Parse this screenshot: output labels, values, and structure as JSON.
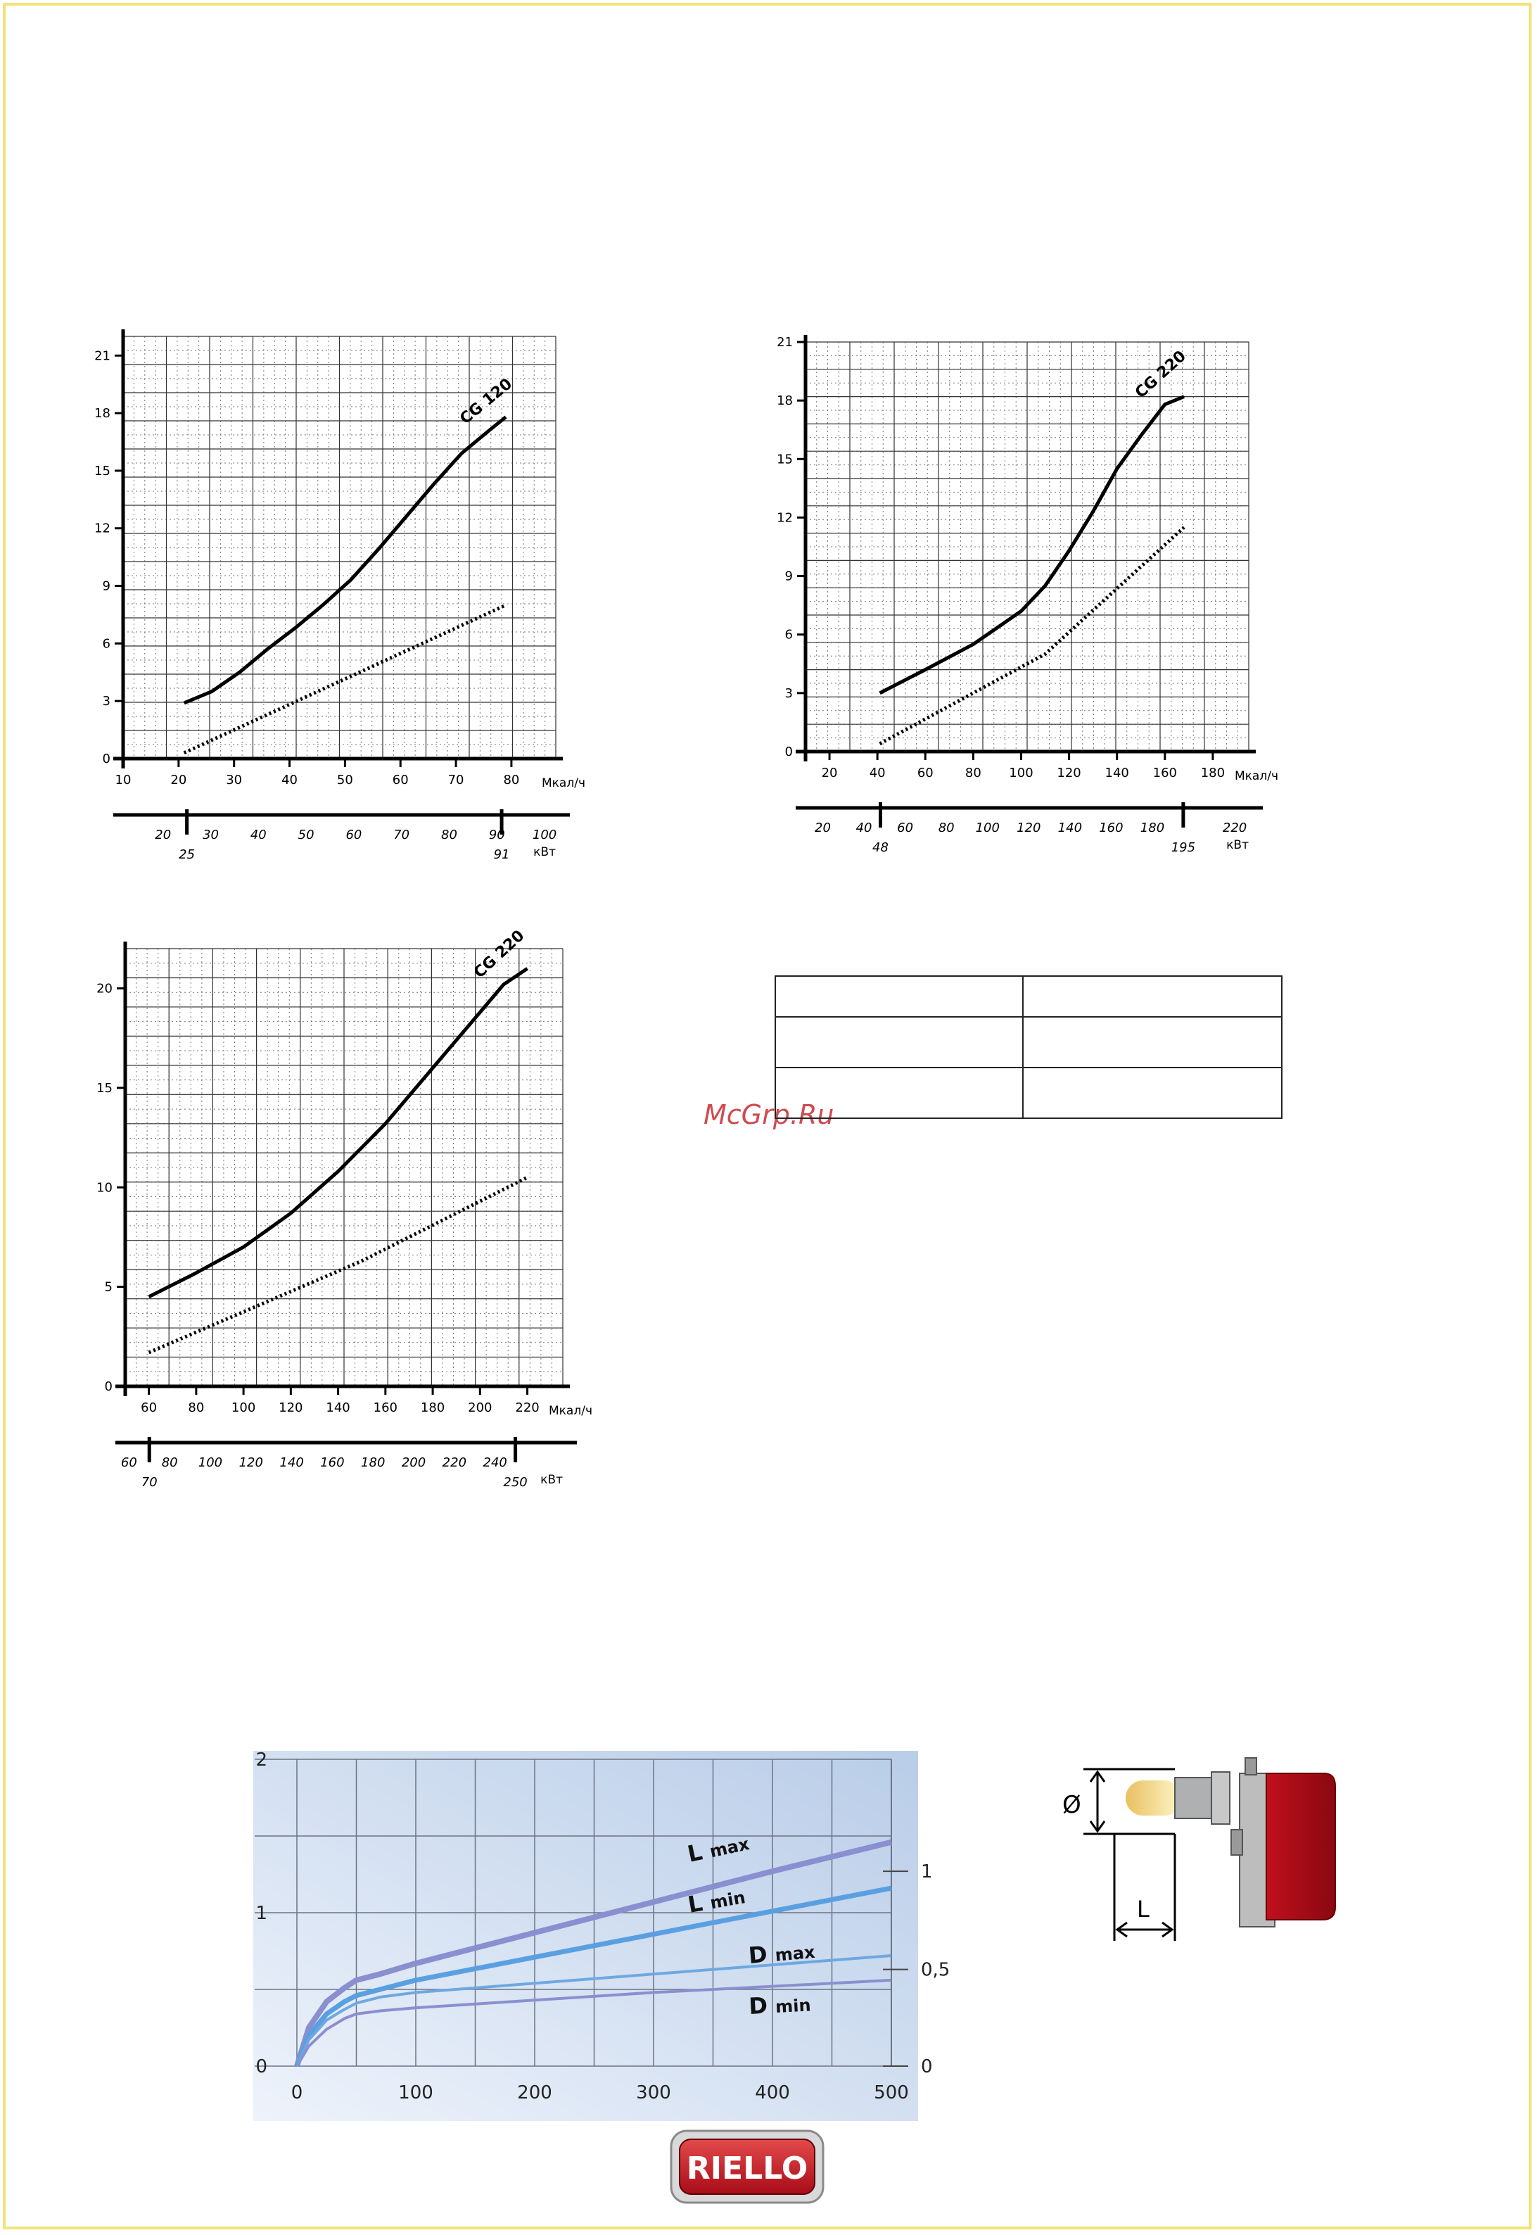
{
  "watermark": "McGrp.Ru",
  "logo_text": "RIELLO",
  "burner_diagram": {
    "diameter_label": "Ø",
    "length_label": "L"
  },
  "chart_data": [
    {
      "type": "line",
      "id": "chart1",
      "ylim": [
        0,
        22
      ],
      "yticks": [
        0,
        3,
        6,
        9,
        12,
        15,
        18,
        21
      ],
      "xlim": [
        10,
        88
      ],
      "xticks": [
        10,
        20,
        30,
        40,
        50,
        60,
        70,
        80
      ],
      "xunit": "Мкал/ч",
      "secondary_axis": {
        "unit": "кВт",
        "ticks": [
          20,
          30,
          40,
          50,
          60,
          70,
          80,
          90,
          100
        ],
        "kw_min": 25,
        "kw_max": 91,
        "range_labels": [
          "25",
          "91"
        ]
      },
      "series": [
        {
          "name": "CG 120",
          "style": "solid",
          "x": [
            21,
            26,
            31,
            36,
            41,
            46,
            51,
            56,
            61,
            66,
            71,
            76,
            79
          ],
          "y": [
            2.9,
            3.5,
            4.5,
            5.7,
            6.8,
            8.0,
            9.3,
            10.9,
            12.6,
            14.3,
            15.9,
            17.1,
            17.8
          ]
        },
        {
          "style": "dotted",
          "x": [
            21,
            79
          ],
          "y": [
            0.3,
            8.0
          ]
        }
      ]
    },
    {
      "type": "line",
      "id": "chart2",
      "ylim": [
        0,
        21
      ],
      "yticks": [
        0,
        3,
        6,
        9,
        12,
        15,
        18,
        21
      ],
      "xlim": [
        10,
        195
      ],
      "xticks": [
        20,
        40,
        60,
        80,
        100,
        120,
        140,
        160,
        180
      ],
      "xunit": "Мкал/ч",
      "secondary_axis": {
        "unit": "кВт",
        "ticks": [
          20,
          40,
          60,
          80,
          100,
          120,
          140,
          160,
          180,
          220
        ],
        "kw_min": 48,
        "kw_max": 195,
        "range_labels": [
          "48",
          "195"
        ]
      },
      "series": [
        {
          "name": "CG 220",
          "style": "solid",
          "x": [
            41,
            60,
            80,
            100,
            110,
            120,
            130,
            140,
            150,
            160,
            168
          ],
          "y": [
            3.0,
            4.2,
            5.5,
            7.2,
            8.5,
            10.3,
            12.3,
            14.5,
            16.2,
            17.8,
            18.2
          ]
        },
        {
          "style": "dotted",
          "x": [
            41,
            110,
            168
          ],
          "y": [
            0.4,
            5.0,
            11.5
          ]
        }
      ]
    },
    {
      "type": "line",
      "id": "chart3",
      "ylim": [
        0,
        22
      ],
      "yticks": [
        0,
        5,
        10,
        15,
        20
      ],
      "xlim": [
        50,
        235
      ],
      "xticks": [
        60,
        80,
        100,
        120,
        140,
        160,
        180,
        200,
        220
      ],
      "xunit": "Мкал/ч",
      "secondary_axis": {
        "unit": "кВт",
        "ticks": [
          60,
          80,
          100,
          120,
          140,
          160,
          180,
          200,
          220,
          240
        ],
        "kw_min": 70,
        "kw_max": 250,
        "range_labels": [
          "70",
          "250"
        ]
      },
      "series": [
        {
          "name": "CG 220",
          "style": "solid",
          "x": [
            60,
            80,
            100,
            120,
            140,
            160,
            180,
            200,
            210,
            220
          ],
          "y": [
            4.5,
            5.7,
            7.0,
            8.7,
            10.8,
            13.2,
            16.0,
            18.8,
            20.2,
            21.0
          ]
        },
        {
          "style": "dotted",
          "x": [
            60,
            150,
            220
          ],
          "y": [
            1.7,
            6.3,
            10.5
          ]
        }
      ]
    },
    {
      "type": "line",
      "id": "chart4",
      "xlim": [
        0,
        500
      ],
      "xticks": [
        0,
        100,
        200,
        300,
        400,
        500
      ],
      "ylim": [
        0,
        2
      ],
      "yticks": [
        0,
        1,
        2
      ],
      "y2_ticks": [
        {
          "label": "0",
          "value": 0
        },
        {
          "label": "0,5",
          "value": 0.63
        },
        {
          "label": "1",
          "value": 1.27
        }
      ],
      "series": [
        {
          "name": "L max",
          "color": "#8a8fd0",
          "x": [
            0,
            10,
            25,
            40,
            50,
            70,
            100,
            200,
            300,
            400,
            500
          ],
          "y": [
            0,
            0.25,
            0.42,
            0.51,
            0.56,
            0.6,
            0.67,
            0.87,
            1.07,
            1.27,
            1.46
          ]
        },
        {
          "name": "L min",
          "color": "#5aa0e0",
          "x": [
            0,
            10,
            25,
            40,
            50,
            70,
            100,
            200,
            300,
            400,
            500
          ],
          "y": [
            0,
            0.2,
            0.34,
            0.42,
            0.46,
            0.5,
            0.56,
            0.71,
            0.86,
            1.01,
            1.16
          ]
        },
        {
          "name": "D max",
          "color": "#6fa8e0",
          "x": [
            0,
            10,
            25,
            40,
            50,
            70,
            100,
            200,
            300,
            400,
            500
          ],
          "y": [
            0,
            0.17,
            0.3,
            0.37,
            0.41,
            0.45,
            0.48,
            0.54,
            0.6,
            0.66,
            0.72
          ]
        },
        {
          "name": "D min",
          "color": "#8a8fd0",
          "x": [
            0,
            10,
            25,
            40,
            50,
            70,
            100,
            200,
            300,
            400,
            500
          ],
          "y": [
            0,
            0.13,
            0.24,
            0.31,
            0.34,
            0.36,
            0.38,
            0.43,
            0.48,
            0.52,
            0.56
          ]
        }
      ]
    }
  ]
}
